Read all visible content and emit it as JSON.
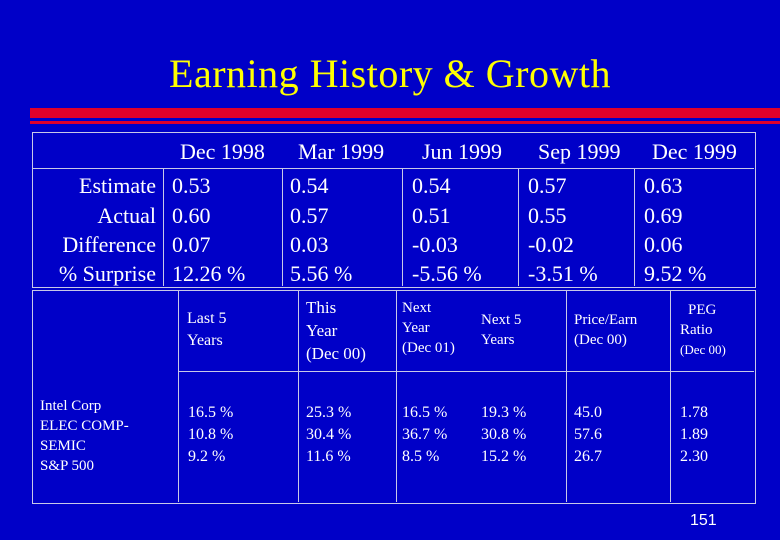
{
  "title": "Earning History & Growth",
  "history": {
    "periods": [
      "Dec 1998",
      "Mar 1999",
      "Jun 1999",
      "Sep 1999",
      "Dec 1999"
    ],
    "row_labels": [
      "Estimate",
      "Actual",
      "Difference",
      "% Surprise"
    ],
    "columns": [
      [
        "0.53",
        "0.60",
        "0.07",
        "12.26 %"
      ],
      [
        "0.54",
        "0.57",
        "0.03",
        "5.56 %"
      ],
      [
        "0.54",
        "0.51",
        "-0.03",
        "-5.56 %"
      ],
      [
        "0.57",
        "0.55",
        "-0.02",
        "-3.51 %"
      ],
      [
        "0.63",
        "0.69",
        "0.06",
        "9.52 %"
      ]
    ]
  },
  "growth": {
    "headers": {
      "last5": [
        "Last 5",
        "Years"
      ],
      "this_year": [
        "This",
        "Year",
        "(Dec 00)"
      ],
      "next_year": [
        "Next",
        "Year",
        "(Dec 01)"
      ],
      "next5": [
        "Next 5",
        "Years"
      ],
      "price_earn": [
        "Price/Earn",
        "(Dec 00)"
      ],
      "peg": [
        "PEG",
        "Ratio",
        "(Dec 00)"
      ]
    },
    "row_labels": [
      "Intel Corp",
      "ELEC COMP-",
      "SEMIC",
      "S&P 500"
    ],
    "columns": {
      "last5": [
        "16.5 %",
        "10.8 %",
        "9.2 %"
      ],
      "this_year": [
        "25.3 %",
        "30.4 %",
        "11.6 %"
      ],
      "next_year": [
        "16.5 %",
        "36.7 %",
        "8.5 %"
      ],
      "next5": [
        "19.3 %",
        "30.8 %",
        "15.2 %"
      ],
      "price_earn": [
        "45.0",
        "57.6",
        "26.7"
      ],
      "peg": [
        "1.78",
        "1.89",
        "2.30"
      ]
    }
  },
  "page_number": "151"
}
